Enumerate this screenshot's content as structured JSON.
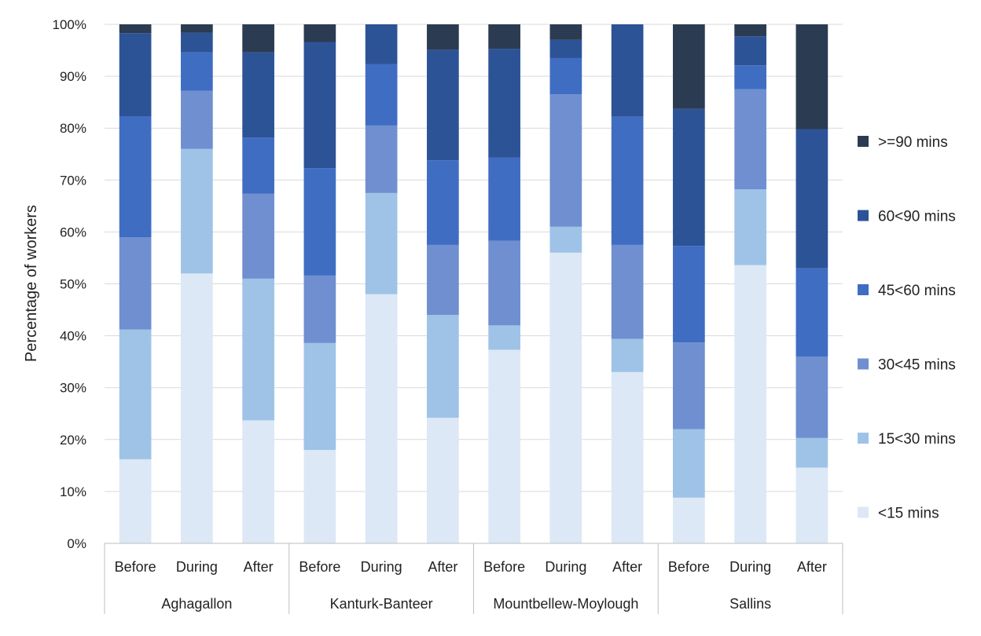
{
  "chart_data": {
    "type": "bar",
    "stacked": true,
    "percent_stacked": true,
    "title": "",
    "xlabel": "",
    "ylabel": "Percentage of workers",
    "ylim": [
      0,
      100
    ],
    "y_ticks": [
      "0%",
      "10%",
      "20%",
      "30%",
      "40%",
      "50%",
      "60%",
      "70%",
      "80%",
      "90%",
      "100%"
    ],
    "grid": true,
    "legend_position": "right",
    "groups": [
      {
        "name": "Aghagallon",
        "categories": [
          "Before",
          "During",
          "After"
        ]
      },
      {
        "name": "Kanturk-Banteer",
        "categories": [
          "Before",
          "During",
          "After"
        ]
      },
      {
        "name": "Mountbellew-Moylough",
        "categories": [
          "Before",
          "During",
          "After"
        ]
      },
      {
        "name": "Sallins",
        "categories": [
          "Before",
          "During",
          "After"
        ]
      }
    ],
    "series": [
      {
        "name": "<15 mins",
        "color": "#dce8f6",
        "values": [
          16.2,
          52.0,
          23.7,
          18.0,
          48.0,
          24.2,
          37.3,
          56.0,
          33.0,
          8.8,
          53.6,
          14.6
        ]
      },
      {
        "name": "15<30 mins",
        "color": "#9fc3e7",
        "values": [
          25.0,
          24.0,
          27.3,
          20.6,
          19.5,
          19.8,
          4.7,
          5.0,
          6.4,
          13.2,
          14.6,
          5.7
        ]
      },
      {
        "name": "30<45 mins",
        "color": "#6f8fd0",
        "values": [
          17.8,
          11.2,
          16.4,
          13.0,
          13.0,
          13.5,
          16.3,
          25.5,
          18.1,
          16.7,
          19.3,
          15.7
        ]
      },
      {
        "name": "45<60 mins",
        "color": "#3f6dc2",
        "values": [
          23.3,
          7.4,
          10.8,
          20.7,
          11.8,
          16.3,
          16.0,
          7.0,
          24.7,
          18.6,
          4.6,
          17.0
        ]
      },
      {
        "name": "60<90 mins",
        "color": "#2d5397",
        "values": [
          16.0,
          3.8,
          16.4,
          24.3,
          7.7,
          21.3,
          21.0,
          3.5,
          17.8,
          26.4,
          5.6,
          26.8
        ]
      },
      {
        "name": ">=90 mins",
        "color": "#2b3b52",
        "values": [
          1.7,
          1.6,
          5.4,
          3.4,
          0.0,
          4.9,
          4.7,
          3.0,
          0.0,
          16.3,
          2.3,
          20.2
        ]
      }
    ]
  }
}
